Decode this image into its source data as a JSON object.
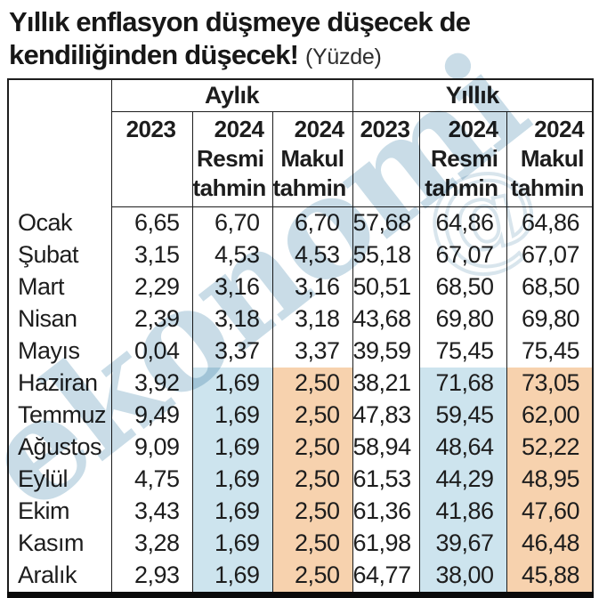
{
  "title": {
    "line1": "Yıllık enflasyon düşmeye düşecek de",
    "line2": "kendiliğinden düşecek!",
    "unit": "(Yüzde)"
  },
  "table": {
    "header": {
      "groups": [
        "Aylık",
        "Yıllık"
      ],
      "columns": [
        "2023",
        "2024\nResmi\ntahmin",
        "2024\nMakul\ntahmin",
        "2023",
        "2024\nResmi\ntahmin",
        "2024\nMakul\ntahmin"
      ]
    }
  },
  "watermark": {
    "text": "ekonomi",
    "symbol": "@"
  },
  "colors": {
    "highlight_blue": "#cde4ee",
    "highlight_orange": "#f7d2ae",
    "watermark": "#9cc0d3",
    "border": "#1d1d1d"
  },
  "chart_data": {
    "type": "table",
    "title": "Yıllık enflasyon düşmeye düşecek de kendiliğinden düşecek! (Yüzde)",
    "categories": [
      "Ocak",
      "Şubat",
      "Mart",
      "Nisan",
      "Mayıs",
      "Haziran",
      "Temmuz",
      "Ağustos",
      "Eylül",
      "Ekim",
      "Kasım",
      "Aralık"
    ],
    "column_groups": [
      "Aylık",
      "Yıllık"
    ],
    "series": [
      {
        "name": "Aylık 2023",
        "values": [
          6.65,
          3.15,
          2.29,
          2.39,
          0.04,
          3.92,
          9.49,
          9.09,
          4.75,
          3.43,
          3.28,
          2.93
        ]
      },
      {
        "name": "Aylık 2024 Resmi tahmin",
        "values": [
          6.7,
          4.53,
          3.16,
          3.18,
          3.37,
          1.69,
          1.69,
          1.69,
          1.69,
          1.69,
          1.69,
          1.69
        ]
      },
      {
        "name": "Aylık 2024 Makul tahmin",
        "values": [
          6.7,
          4.53,
          3.16,
          3.18,
          3.37,
          2.5,
          2.5,
          2.5,
          2.5,
          2.5,
          2.5,
          2.5
        ]
      },
      {
        "name": "Yıllık 2023",
        "values": [
          57.68,
          55.18,
          50.51,
          43.68,
          39.59,
          38.21,
          47.83,
          58.94,
          61.53,
          61.36,
          61.98,
          64.77
        ]
      },
      {
        "name": "Yıllık 2024 Resmi tahmin",
        "values": [
          64.86,
          67.07,
          68.5,
          69.8,
          75.45,
          71.68,
          59.45,
          48.64,
          44.29,
          41.86,
          39.67,
          38.0
        ]
      },
      {
        "name": "Yıllık 2024 Makul tahmin",
        "values": [
          64.86,
          67.07,
          68.5,
          69.8,
          75.45,
          73.05,
          62.0,
          52.22,
          48.95,
          47.6,
          46.48,
          45.88
        ]
      }
    ],
    "highlighted_months": [
      "Haziran",
      "Temmuz",
      "Ağustos",
      "Eylül",
      "Ekim",
      "Kasım",
      "Aralık"
    ],
    "decimal_separator": ","
  }
}
